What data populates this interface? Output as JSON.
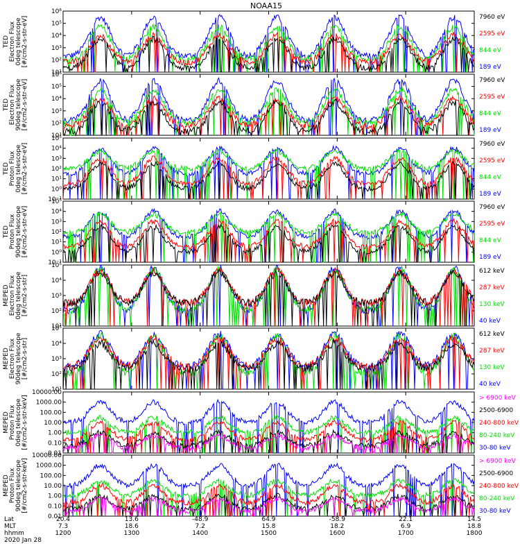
{
  "title": "NOAA15",
  "footer": {
    "rows": [
      {
        "label": "Lat",
        "values": [
          "20.4",
          "13.6",
          "-48.9",
          "64.9",
          "-58.9",
          "22.1",
          "14.5"
        ]
      },
      {
        "label": "MLT",
        "values": [
          "7.3",
          "18.6",
          "7.2",
          "15.8",
          "18.2",
          "6.9",
          "18.8"
        ]
      },
      {
        "label": "hhmm",
        "values": [
          "1200",
          "1300",
          "1400",
          "1500",
          "1600",
          "1700",
          "1800"
        ]
      }
    ],
    "date": "2020 Jan 28"
  },
  "colors": {
    "black": "#000000",
    "red": "#ff0000",
    "green": "#00e000",
    "blue": "#0000ff",
    "magenta": "#ff00ff"
  },
  "chart_data": [
    {
      "type": "line",
      "ylabel": [
        "TED",
        "Electron Flux",
        "0deg telescope",
        "[#/cm2-s-str-eV]"
      ],
      "y_scale": "log",
      "ylim": [
        10,
        1000000
      ],
      "yticks": [
        "10¹",
        "10²",
        "10³",
        "10⁴",
        "10⁵",
        "10⁶"
      ],
      "xlim_hours": [
        12,
        18
      ],
      "series": [
        {
          "name": "7960 eV",
          "color": "#000000",
          "baseline": 20,
          "peak": 5000
        },
        {
          "name": "2595 eV",
          "color": "#ff0000",
          "baseline": 60,
          "peak": 10000
        },
        {
          "name": "844 eV",
          "color": "#00e000",
          "baseline": 100,
          "peak": 50000
        },
        {
          "name": "189 eV",
          "color": "#0000ff",
          "baseline": 200,
          "peak": 300000
        }
      ]
    },
    {
      "type": "line",
      "ylabel": [
        "TED",
        "Electron Flux",
        "90deg telescope",
        "[#/cm2-s-str-eV]"
      ],
      "y_scale": "log",
      "ylim": [
        10,
        1000000
      ],
      "yticks": [
        "10¹",
        "10²",
        "10³",
        "10⁴",
        "10⁵",
        "10⁶"
      ],
      "xlim_hours": [
        12,
        18
      ],
      "series": [
        {
          "name": "7960 eV",
          "color": "#000000",
          "baseline": 20,
          "peak": 5000
        },
        {
          "name": "2595 eV",
          "color": "#ff0000",
          "baseline": 60,
          "peak": 10000
        },
        {
          "name": "844 eV",
          "color": "#00e000",
          "baseline": 100,
          "peak": 50000
        },
        {
          "name": "189 eV",
          "color": "#0000ff",
          "baseline": 150,
          "peak": 300000
        }
      ]
    },
    {
      "type": "line",
      "ylabel": [
        "TED",
        "Proton Flux",
        "0deg telescope",
        "[#/cm2-s-str-eV]"
      ],
      "y_scale": "log",
      "ylim": [
        0.1,
        100000
      ],
      "yticks": [
        "10⁻¹",
        "10⁰",
        "10¹",
        "10²",
        "10³",
        "10⁴",
        "10⁵"
      ],
      "xlim_hours": [
        12,
        18
      ],
      "series": [
        {
          "name": "7960 eV",
          "color": "#000000",
          "baseline": 1,
          "peak": 300
        },
        {
          "name": "2595 eV",
          "color": "#ff0000",
          "baseline": 3,
          "peak": 1000
        },
        {
          "name": "844 eV",
          "color": "#00e000",
          "baseline": 100,
          "peak": 5000
        },
        {
          "name": "189 eV",
          "color": "#0000ff",
          "baseline": 30,
          "peak": 10000
        }
      ]
    },
    {
      "type": "line",
      "ylabel": [
        "TED",
        "Proton Flux",
        "90deg telescope",
        "[#/cm2-s-str-eV]"
      ],
      "y_scale": "log",
      "ylim": [
        0.1,
        100000
      ],
      "yticks": [
        "10⁻¹",
        "10⁰",
        "10¹",
        "10²",
        "10³",
        "10⁴",
        "10⁵"
      ],
      "xlim_hours": [
        12,
        18
      ],
      "series": [
        {
          "name": "7960 eV",
          "color": "#000000",
          "baseline": 1,
          "peak": 300
        },
        {
          "name": "2595 eV",
          "color": "#ff0000",
          "baseline": 3,
          "peak": 1000
        },
        {
          "name": "844 eV",
          "color": "#00e000",
          "baseline": 80,
          "peak": 5000
        },
        {
          "name": "189 eV",
          "color": "#0000ff",
          "baseline": 30,
          "peak": 10000
        }
      ]
    },
    {
      "type": "line",
      "ylabel": [
        "MEPED",
        "Electron Flux",
        "0deg telescope",
        "[#/cm2-s-str]"
      ],
      "y_scale": "log",
      "ylim": [
        10,
        100000
      ],
      "yticks": [
        "10¹",
        "10²",
        "10³",
        "10⁴",
        "10⁵"
      ],
      "xlim_hours": [
        12,
        18
      ],
      "series": [
        {
          "name": "612 keV",
          "color": "#000000",
          "baseline": 300,
          "peak": 30000
        },
        {
          "name": "287 keV",
          "color": "#ff0000",
          "baseline": 300,
          "peak": 40000
        },
        {
          "name": "130 keV",
          "color": "#00e000",
          "baseline": 100,
          "peak": 50000
        },
        {
          "name": "40 keV",
          "color": "#0000ff",
          "baseline": 100,
          "peak": 60000
        }
      ]
    },
    {
      "type": "line",
      "ylabel": [
        "MEPED",
        "Electron Flux",
        "90deg telescope",
        "[#/cm2-s-str]"
      ],
      "y_scale": "log",
      "ylim": [
        10,
        100000
      ],
      "yticks": [
        "10¹",
        "10²",
        "10³",
        "10⁴",
        "10⁵"
      ],
      "xlim_hours": [
        12,
        18
      ],
      "series": [
        {
          "name": "612 keV",
          "color": "#000000",
          "baseline": 200,
          "peak": 10000
        },
        {
          "name": "287 keV",
          "color": "#ff0000",
          "baseline": 300,
          "peak": 20000
        },
        {
          "name": "130 keV",
          "color": "#00e000",
          "baseline": 100,
          "peak": 30000
        },
        {
          "name": "40 keV",
          "color": "#0000ff",
          "baseline": 300,
          "peak": 40000
        }
      ]
    },
    {
      "type": "line",
      "ylabel": [
        "MEPED",
        "Proton Flux",
        "0deg telescope",
        "[#/cm2-s-str-keV]"
      ],
      "y_scale": "log",
      "ylim": [
        0.01,
        10000
      ],
      "yticks": [
        "0.01",
        "0.10",
        "1.00",
        "10.00",
        "100.00",
        "1000.00",
        "10000.00"
      ],
      "xlim_hours": [
        12,
        18
      ],
      "series": [
        {
          "name": "> 6900 keV",
          "color": "#ff00ff",
          "baseline": 0.03,
          "peak": 0.5
        },
        {
          "name": "2500-6900",
          "color": "#000000",
          "baseline": 0.05,
          "peak": 1
        },
        {
          "name": "240-800 keV",
          "color": "#ff0000",
          "baseline": 0.2,
          "peak": 10
        },
        {
          "name": "80-240 keV",
          "color": "#00e000",
          "baseline": 1,
          "peak": 30
        },
        {
          "name": "30-80 keV",
          "color": "#0000ff",
          "baseline": 10,
          "peak": 1000
        }
      ]
    },
    {
      "type": "line",
      "ylabel": [
        "MEPED",
        "Proton Flux",
        "90deg telescope",
        "[#/cm2-s-str-keV]"
      ],
      "y_scale": "log",
      "ylim": [
        0.01,
        10000
      ],
      "yticks": [
        "0.01",
        "0.10",
        "1.00",
        "10.00",
        "100.00",
        "1000.00",
        "10000.00"
      ],
      "xlim_hours": [
        12,
        18
      ],
      "series": [
        {
          "name": "> 6900 keV",
          "color": "#ff00ff",
          "baseline": 0.03,
          "peak": 0.5
        },
        {
          "name": "2500-6900",
          "color": "#000000",
          "baseline": 0.05,
          "peak": 1
        },
        {
          "name": "240-800 keV",
          "color": "#ff0000",
          "baseline": 0.2,
          "peak": 10
        },
        {
          "name": "80-240 keV",
          "color": "#00e000",
          "baseline": 1,
          "peak": 30
        },
        {
          "name": "30-80 keV",
          "color": "#0000ff",
          "baseline": 10,
          "peak": 1000
        }
      ]
    }
  ]
}
